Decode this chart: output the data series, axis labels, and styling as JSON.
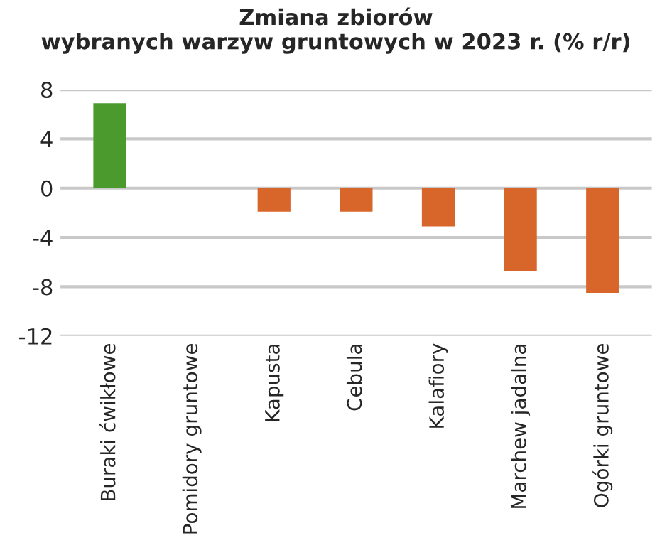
{
  "chart_data": {
    "type": "bar",
    "title": "Zmiana zbiorów\nwybranych warzyw gruntowych w 2023 r. (% r/r)",
    "categories": [
      "Buraki ćwikłowe",
      "Pomidory gruntowe",
      "Kapusta",
      "Cebula",
      "Kalafiory",
      "Marchew jadalna",
      "Ogórki gruntowe"
    ],
    "values": [
      6.9,
      0,
      -1.9,
      -1.9,
      -3.1,
      -6.7,
      -8.5
    ],
    "colors": [
      "#4a9a2e",
      "#d8652a",
      "#d8652a",
      "#d8652a",
      "#d8652a",
      "#d8652a",
      "#d8652a"
    ],
    "ylim": [
      -12,
      8
    ],
    "yticks": [
      -12,
      -8,
      -4,
      0,
      4,
      8
    ],
    "grid": "y"
  }
}
